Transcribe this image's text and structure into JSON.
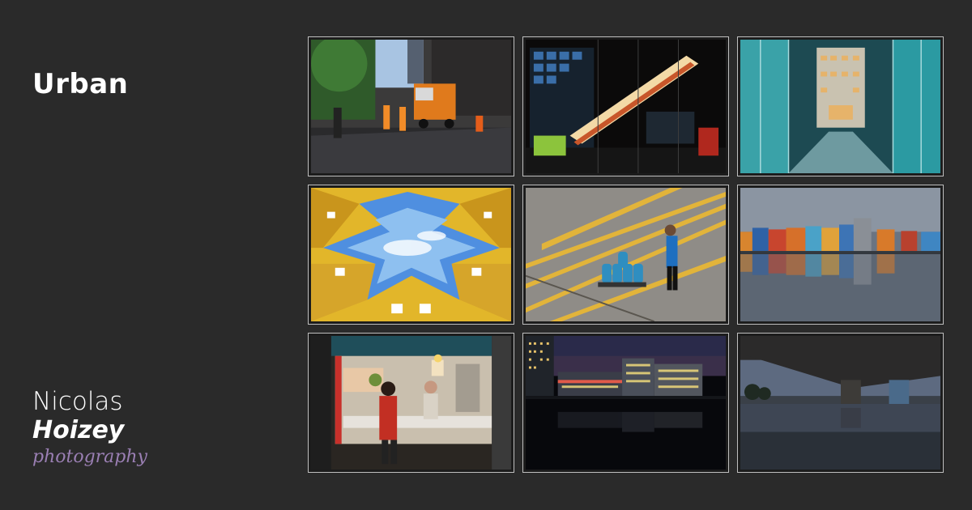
{
  "gallery": {
    "title": "Urban",
    "photos": [
      {
        "subject": "street-construction-truck",
        "icon": "photo-icon"
      },
      {
        "subject": "lit-escalator-facade",
        "icon": "photo-icon"
      },
      {
        "subject": "glass-corridor-teal",
        "icon": "photo-icon"
      },
      {
        "subject": "cube-houses-sky",
        "icon": "photo-icon"
      },
      {
        "subject": "man-pulling-gas-cylinders",
        "icon": "photo-icon"
      },
      {
        "subject": "colorful-houses-reflection",
        "icon": "photo-icon"
      },
      {
        "subject": "market-butcher-stall",
        "icon": "photo-icon"
      },
      {
        "subject": "office-buildings-night-reflection",
        "icon": "photo-icon"
      },
      {
        "subject": "bridge-underside-river",
        "icon": "photo-icon"
      }
    ]
  },
  "logo": {
    "line1": "Nicolas",
    "line2": "Hoizey",
    "line3": "photography"
  },
  "colors": {
    "background": "#2a2a2a",
    "title": "#ffffff",
    "logo_accent": "#9a7fb3",
    "thumb_border": "#bfbfbf"
  }
}
